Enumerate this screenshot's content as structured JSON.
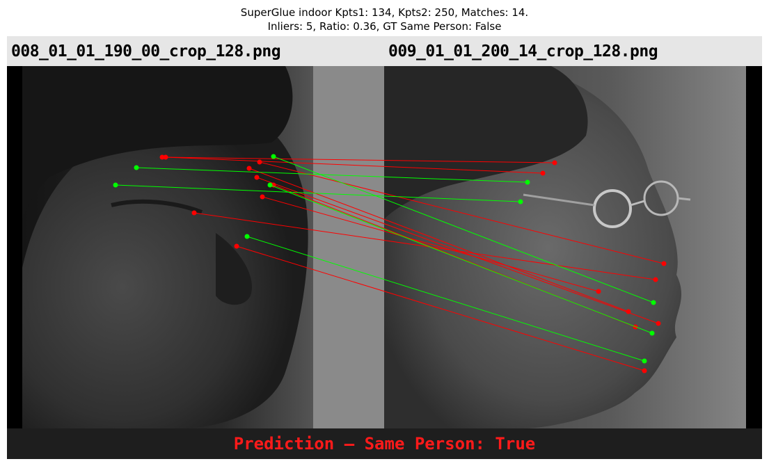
{
  "figure": {
    "title_line1": "SuperGlue indoor Kpts1: 134, Kpts2: 250, Matches: 14.",
    "title_line2": "Inliers: 5, Ratio: 0.36, GT Same Person: False",
    "left_filename": "008_01_01_190_00_crop_128.png",
    "right_filename": "009_01_01_200_14_crop_128.png",
    "prediction_text": "Prediction — Same Person: True"
  },
  "colors": {
    "inlier": "#00ff00",
    "outlier": "#ff0000",
    "prediction": "#ff1a1a"
  },
  "content": {
    "left_image": "grayscale face photo, frontal-right view of a man",
    "right_image": "grayscale face photo, right profile of a man wearing glasses",
    "match_counts": {
      "matches": 14,
      "inliers": 5
    }
  }
}
